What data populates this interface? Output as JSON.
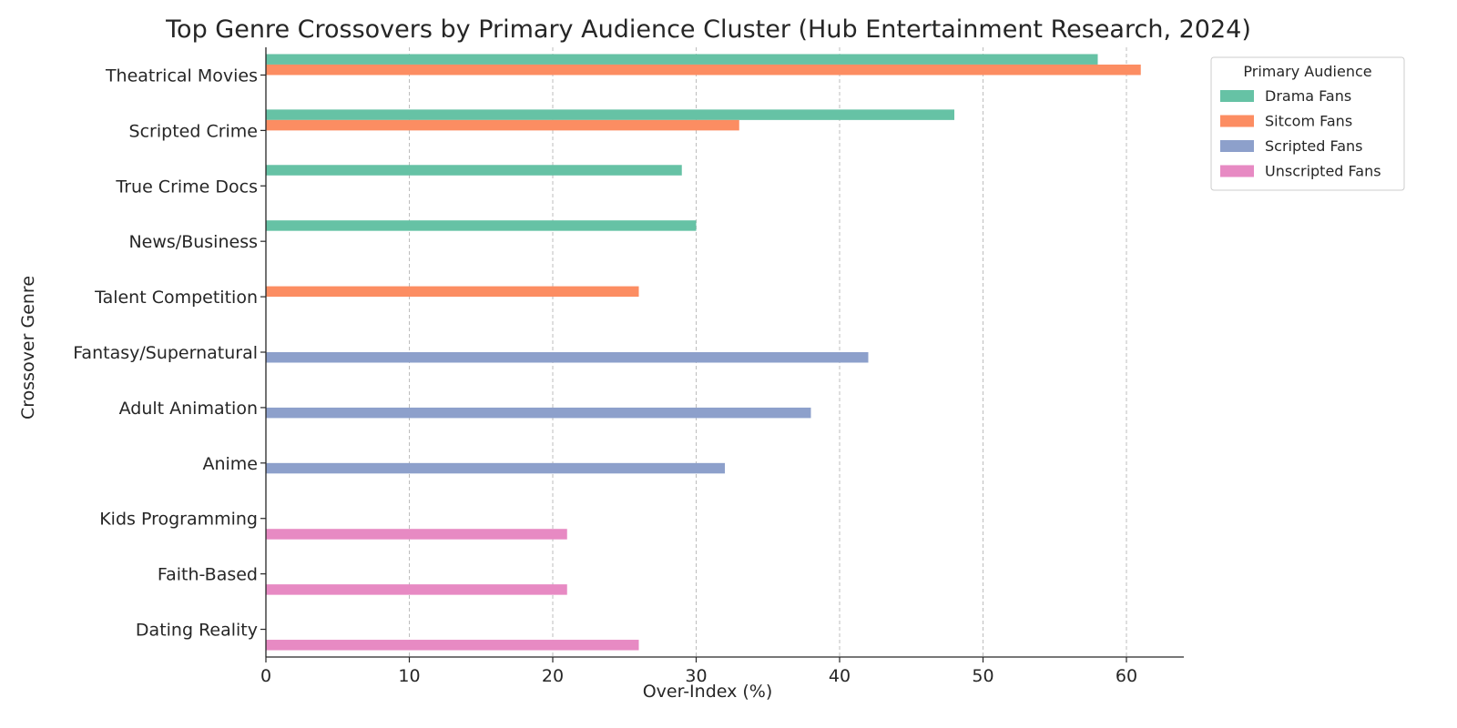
{
  "chart_data": {
    "type": "bar",
    "orientation": "horizontal",
    "title": "Top Genre Crossovers by Primary Audience Cluster (Hub Entertainment Research, 2024)",
    "xlabel": "Over-Index (%)",
    "ylabel": "Crossover Genre",
    "xlim": [
      0,
      64
    ],
    "xticks": [
      0,
      10,
      20,
      30,
      40,
      50,
      60
    ],
    "grid": "x-dashed",
    "legend_title": "Primary Audience",
    "legend_position": "upper right, outside plot",
    "categories": [
      "Theatrical Movies",
      "Scripted Crime",
      "True Crime Docs",
      "News/Business",
      "Talent Competition",
      "Fantasy/Supernatural",
      "Adult Animation",
      "Anime",
      "Kids Programming",
      "Faith-Based",
      "Dating Reality"
    ],
    "series": [
      {
        "name": "Drama Fans",
        "color": "#66c2a5",
        "values": [
          58,
          48,
          29,
          30,
          null,
          null,
          null,
          null,
          null,
          null,
          null
        ]
      },
      {
        "name": "Sitcom Fans",
        "color": "#fc8d62",
        "values": [
          61,
          33,
          null,
          null,
          26,
          null,
          null,
          null,
          null,
          null,
          null
        ]
      },
      {
        "name": "Scripted Fans",
        "color": "#8da0cb",
        "values": [
          null,
          null,
          null,
          null,
          null,
          42,
          38,
          32,
          null,
          null,
          null
        ]
      },
      {
        "name": "Unscripted Fans",
        "color": "#e78ac3",
        "values": [
          null,
          null,
          null,
          null,
          null,
          null,
          null,
          null,
          21,
          21,
          26
        ]
      }
    ]
  }
}
